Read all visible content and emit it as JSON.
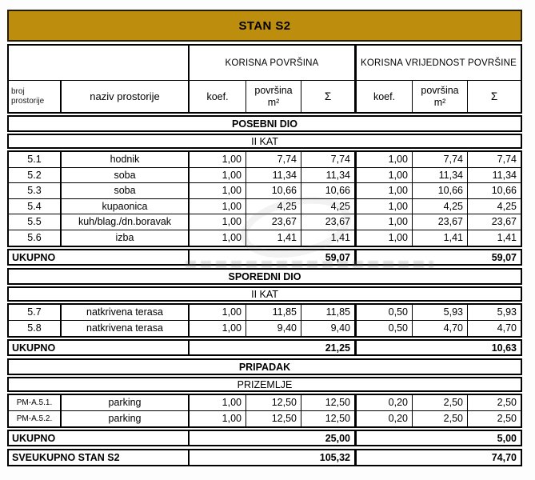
{
  "title": "STAN S2",
  "colors": {
    "banner_bg": "#BD8D0D",
    "banner_border": "#241d00",
    "grid_border": "#000000",
    "background": "#fdfdfd"
  },
  "header": {
    "group_korisna": "KORISNA POVRŠINA",
    "group_vrijednost": "KORISNA VRIJEDNOST POVRŠINE",
    "col_broj_line1": "broj",
    "col_broj_line2": "prostorije",
    "col_naziv": "naziv prostorije",
    "col_koef": "koef.",
    "col_povrsina_line1": "površina",
    "col_povrsina_line2": "m²",
    "col_sigma": "Σ"
  },
  "table": {
    "rows": [
      {
        "type": "section",
        "style": "bold",
        "label": "POSEBNI DIO"
      },
      {
        "type": "section",
        "style": "normal",
        "label": "II KAT"
      },
      {
        "type": "data",
        "broj": "5.1",
        "naziv": "hodnik",
        "values": [
          "1,00",
          "7,74",
          "7,74",
          "1,00",
          "7,74",
          "7,74"
        ]
      },
      {
        "type": "data",
        "broj": "5.2",
        "naziv": "soba",
        "values": [
          "1,00",
          "11,34",
          "11,34",
          "1,00",
          "11,34",
          "11,34"
        ]
      },
      {
        "type": "data",
        "broj": "5.3",
        "naziv": "soba",
        "values": [
          "1,00",
          "10,66",
          "10,66",
          "1,00",
          "10,66",
          "10,66"
        ]
      },
      {
        "type": "data",
        "broj": "5.4",
        "naziv": "kupaonica",
        "values": [
          "1,00",
          "4,25",
          "4,25",
          "1,00",
          "4,25",
          "4,25"
        ]
      },
      {
        "type": "data",
        "broj": "5.5",
        "naziv": "kuh/blag./dn.boravak",
        "values": [
          "1,00",
          "23,67",
          "23,67",
          "1,00",
          "23,67",
          "23,67"
        ]
      },
      {
        "type": "data",
        "broj": "5.6",
        "naziv": "izba",
        "values": [
          "1,00",
          "1,41",
          "1,41",
          "1,00",
          "1,41",
          "1,41"
        ]
      },
      {
        "type": "total",
        "label": "UKUPNO",
        "sum_korisna": "59,07",
        "sum_vrijednost": "59,07"
      },
      {
        "type": "section",
        "style": "bold",
        "label": "SPOREDNI DIO"
      },
      {
        "type": "section",
        "style": "normal",
        "label": "II KAT"
      },
      {
        "type": "data",
        "broj": "5.7",
        "naziv": "natkrivena terasa",
        "values": [
          "1,00",
          "11,85",
          "11,85",
          "0,50",
          "5,93",
          "5,93"
        ]
      },
      {
        "type": "data",
        "broj": "5.8",
        "naziv": "natkrivena terasa",
        "values": [
          "1,00",
          "9,40",
          "9,40",
          "0,50",
          "4,70",
          "4,70"
        ]
      },
      {
        "type": "total",
        "label": "UKUPNO",
        "sum_korisna": "21,25",
        "sum_vrijednost": "10,63"
      },
      {
        "type": "section",
        "style": "bold",
        "label": "PRIPADAK"
      },
      {
        "type": "section",
        "style": "normal",
        "label": "PRIZEMLJE"
      },
      {
        "type": "data",
        "broj": "PM-A.5.1.",
        "naziv": "parking",
        "values": [
          "1,00",
          "12,50",
          "12,50",
          "0,20",
          "2,50",
          "2,50"
        ]
      },
      {
        "type": "data",
        "broj": "PM-A.5.2.",
        "naziv": "parking",
        "values": [
          "1,00",
          "12,50",
          "12,50",
          "0,20",
          "2,50",
          "2,50"
        ]
      },
      {
        "type": "total",
        "label": "UKUPNO",
        "sum_korisna": "25,00",
        "sum_vrijednost": "5,00"
      },
      {
        "type": "grand_total",
        "label": "SVEUKUPNO STAN S2",
        "sum_korisna": "105,32",
        "sum_vrijednost": "74,70"
      }
    ]
  }
}
